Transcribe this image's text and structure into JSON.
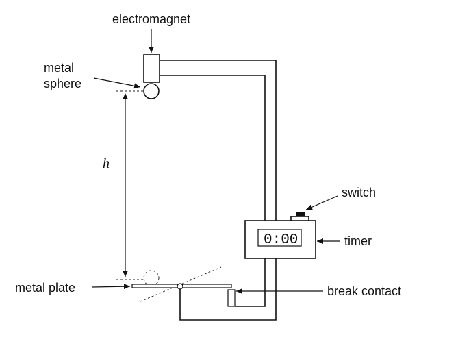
{
  "labels": {
    "electromagnet": "electromagnet",
    "metal_sphere_line1": "metal",
    "metal_sphere_line2": "sphere",
    "height": "h",
    "switch": "switch",
    "timer": "timer",
    "metal_plate": "metal plate",
    "break_contact": "break contact"
  },
  "timer": {
    "display": "0:00"
  },
  "colors": {
    "ink": "#111111",
    "background": "#ffffff"
  }
}
